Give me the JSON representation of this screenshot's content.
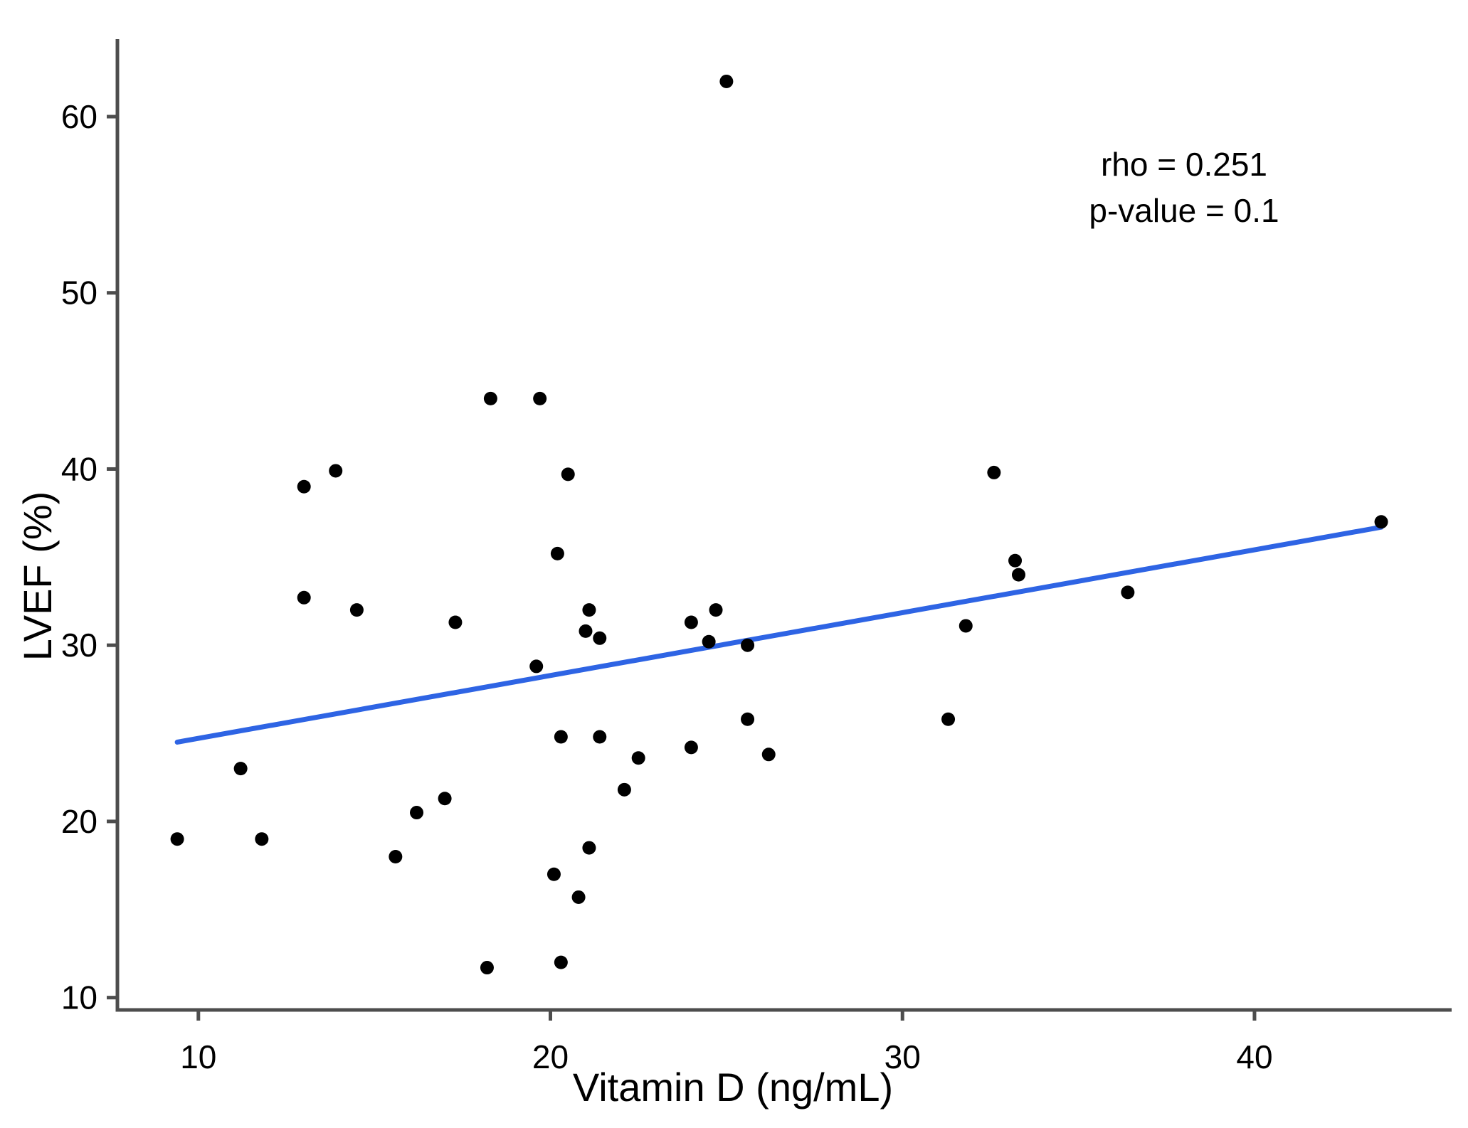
{
  "figure": {
    "background": "#ffffff"
  },
  "chart_data": {
    "type": "scatter",
    "title": "",
    "xlabel": "Vitamin D (ng/mL)",
    "ylabel": "LVEF (%)",
    "x_ticks": [
      10,
      20,
      30,
      40
    ],
    "y_ticks": [
      10,
      20,
      30,
      40,
      50,
      60
    ],
    "xlim": [
      7.7,
      45.6
    ],
    "ylim": [
      9.3,
      64.4
    ],
    "grid": false,
    "legend": "none",
    "axis_color": "#4d4d4d",
    "point_color": "#000000",
    "point_radius": 9.5,
    "trend_color": "#2e64e4",
    "trend_width": 7,
    "annotation": {
      "rho": "rho = 0.251",
      "p_value": "p-value = 0.1"
    },
    "trend_line": {
      "x": [
        9.4,
        43.6
      ],
      "y": [
        24.5,
        36.7
      ]
    },
    "points": [
      [
        9.4,
        19.0
      ],
      [
        11.2,
        23.0
      ],
      [
        11.8,
        19.0
      ],
      [
        13.0,
        32.7
      ],
      [
        13.0,
        39.0
      ],
      [
        13.9,
        39.9
      ],
      [
        14.5,
        32.0
      ],
      [
        15.6,
        18.0
      ],
      [
        16.2,
        20.5
      ],
      [
        17.0,
        21.3
      ],
      [
        17.3,
        31.3
      ],
      [
        18.2,
        11.7
      ],
      [
        18.3,
        44.0
      ],
      [
        19.6,
        28.8
      ],
      [
        19.7,
        44.0
      ],
      [
        20.1,
        17.0
      ],
      [
        20.2,
        35.2
      ],
      [
        20.3,
        24.8
      ],
      [
        20.3,
        12.0
      ],
      [
        20.5,
        39.7
      ],
      [
        20.8,
        15.7
      ],
      [
        21.0,
        30.8
      ],
      [
        21.1,
        32.0
      ],
      [
        21.1,
        18.5
      ],
      [
        21.4,
        30.4
      ],
      [
        21.4,
        24.8
      ],
      [
        22.1,
        21.8
      ],
      [
        22.5,
        23.6
      ],
      [
        24.0,
        31.3
      ],
      [
        24.0,
        24.2
      ],
      [
        24.5,
        30.2
      ],
      [
        24.7,
        32.0
      ],
      [
        25.0,
        62.0
      ],
      [
        25.6,
        30.0
      ],
      [
        25.6,
        25.8
      ],
      [
        26.2,
        23.8
      ],
      [
        31.3,
        25.8
      ],
      [
        31.8,
        31.1
      ],
      [
        32.6,
        39.8
      ],
      [
        33.2,
        34.8
      ],
      [
        33.3,
        34.0
      ],
      [
        36.4,
        33.0
      ],
      [
        43.6,
        37.0
      ]
    ]
  }
}
